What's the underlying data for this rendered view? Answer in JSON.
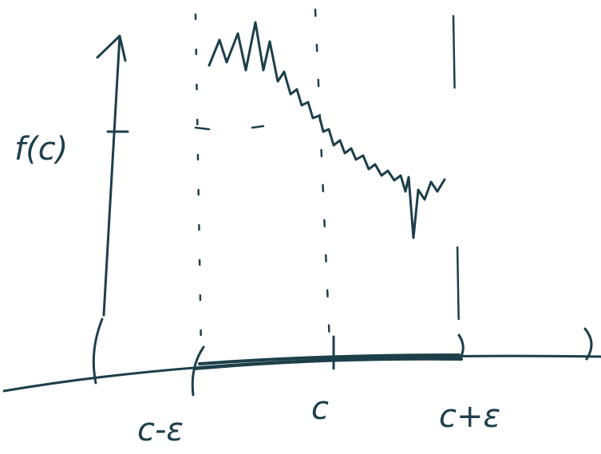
{
  "diagram": {
    "y_label": "f(c)",
    "x_labels": [
      "c-ε",
      "c",
      "c+ε"
    ]
  }
}
